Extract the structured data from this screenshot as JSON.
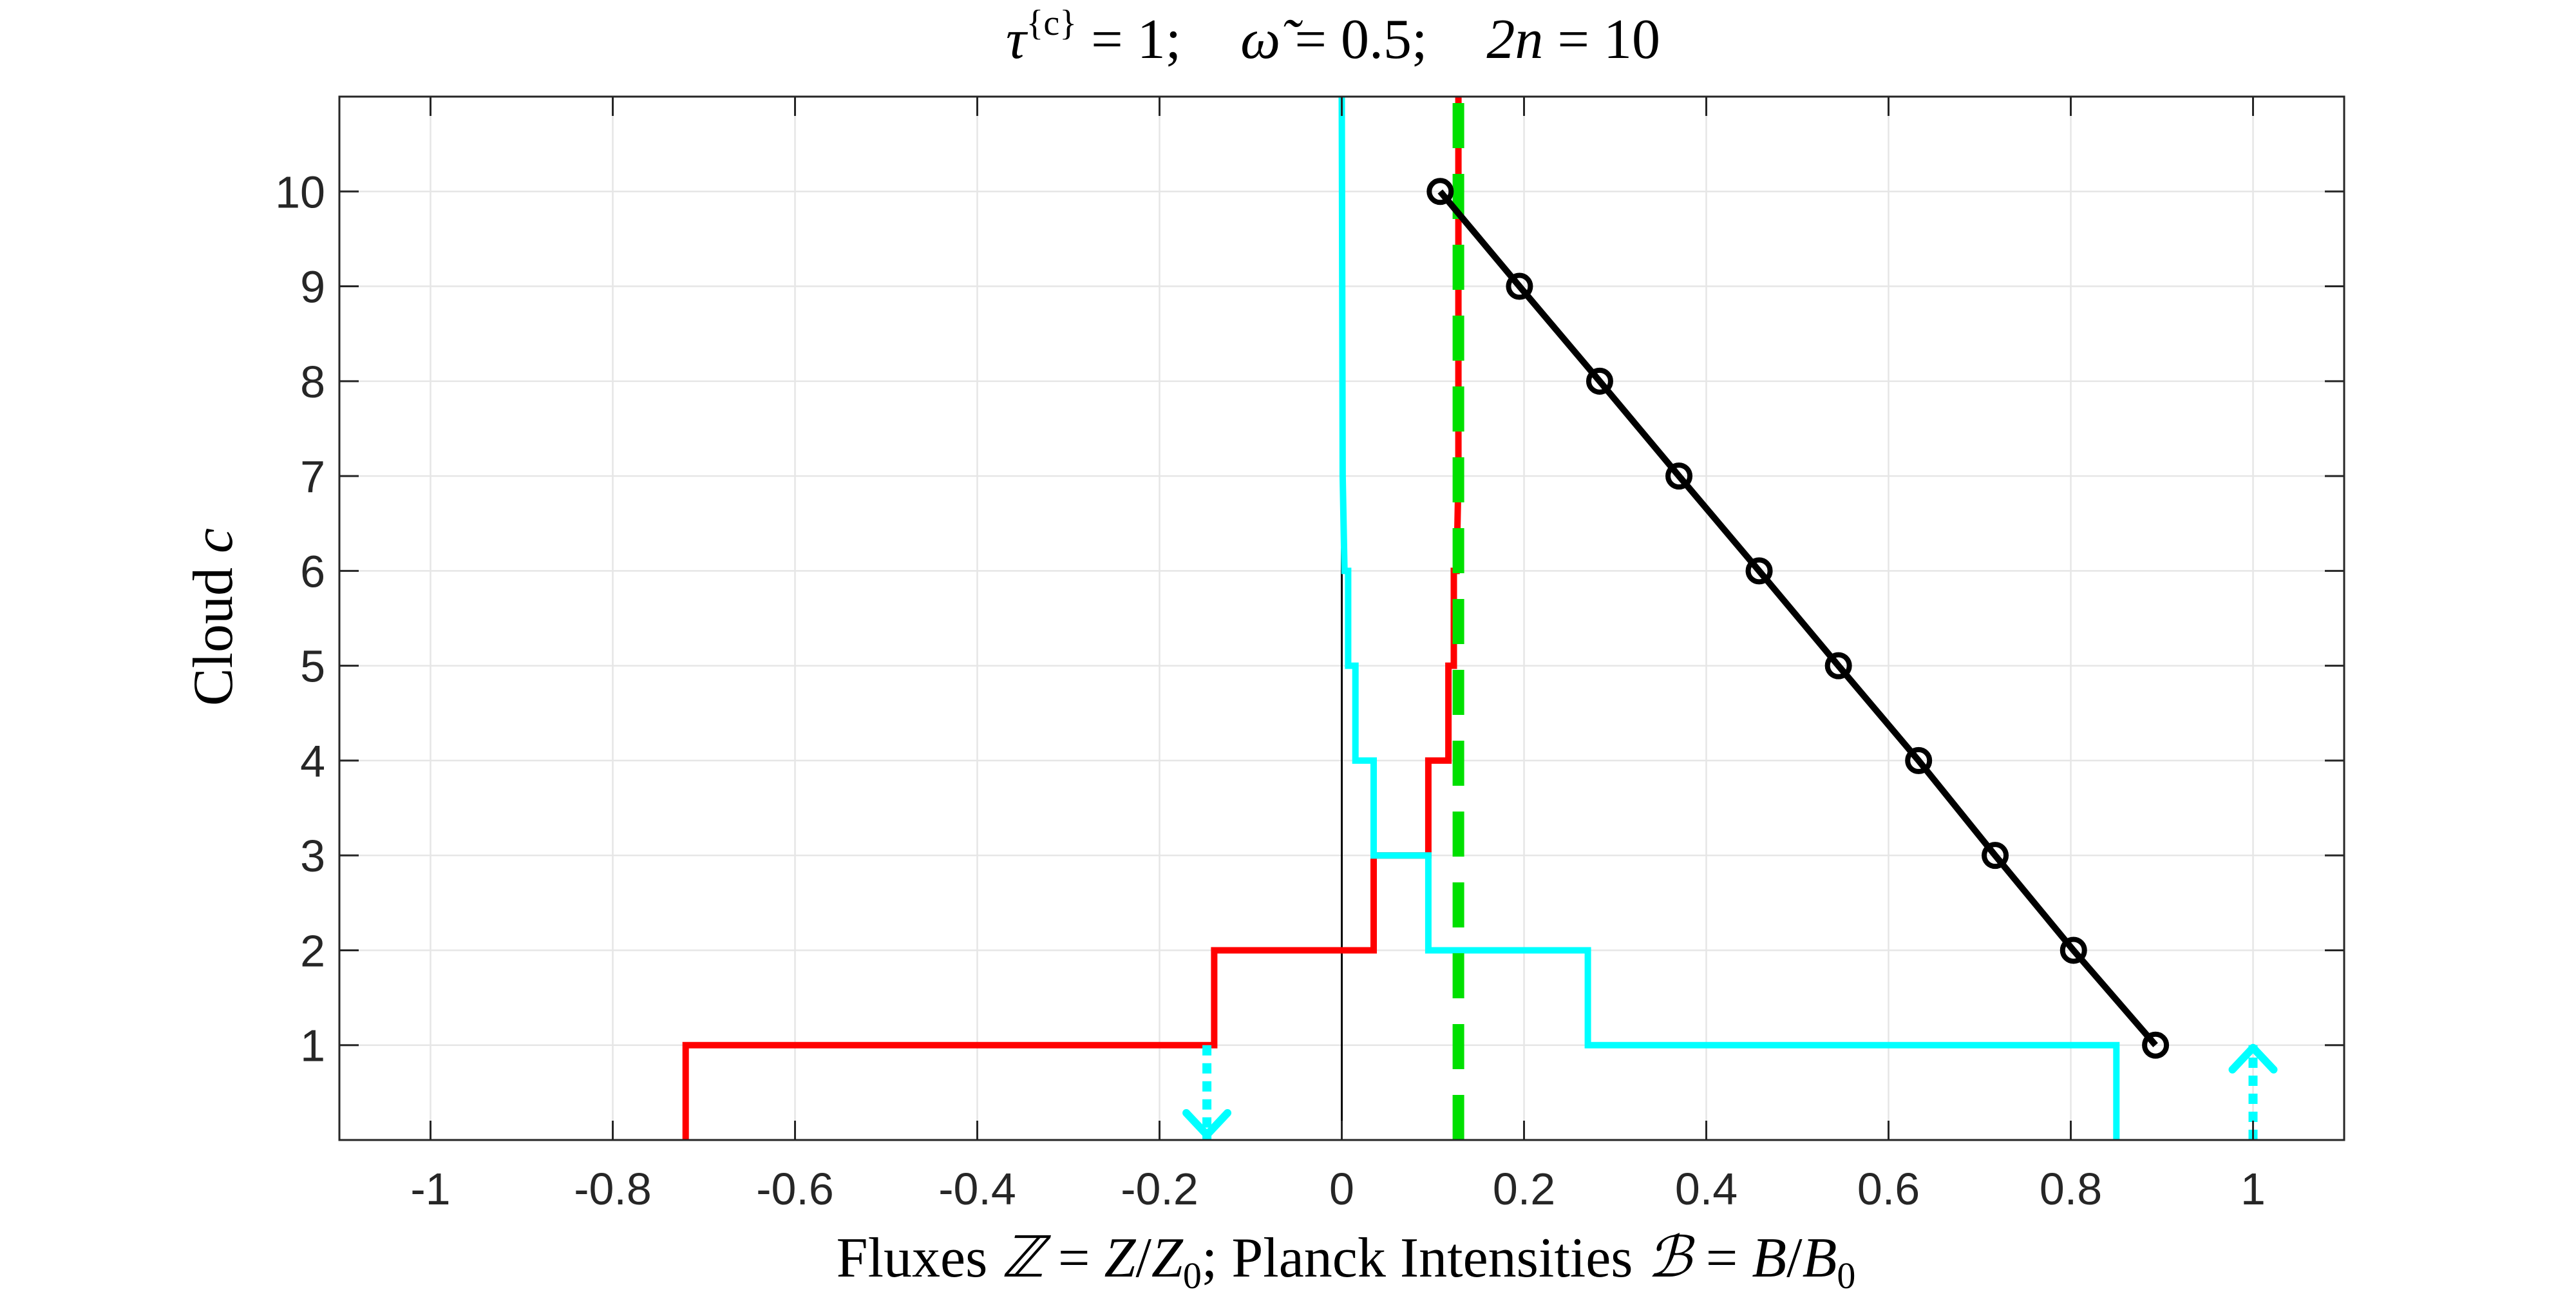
{
  "chart_data": {
    "type": "line",
    "title": "τ{c} = 1;    ω̃ = 0.5;    2n = 10",
    "title_parts": {
      "tau_sym": "τ",
      "tau_sup": "{c}",
      "tau_val": " = 1;",
      "omega_sym": "ω̃",
      "omega_val": " = 0.5;",
      "n_sym": "2n",
      "n_val": " = 10"
    },
    "xlabel": "Fluxes ℤ = Z/Z0;   Planck Intensities ℬ = B/B0",
    "xlabel_parts": {
      "fluxes": "Fluxes ",
      "zcal": "ℤ",
      "zeq": " = ",
      "z": "Z",
      "zslash": "/",
      "z0": "Z",
      "z0sub": "0",
      "semi": ";   Planck Intensities ",
      "bcal": "ℬ",
      "beq": " = ",
      "b": "B",
      "bslash": "/",
      "b0": "B",
      "b0sub": "0"
    },
    "ylabel": "Cloud c",
    "ylabel_parts": {
      "text": "Cloud ",
      "var": "c"
    },
    "xlim": [
      -1.1,
      1.1
    ],
    "ylim": [
      0,
      11
    ],
    "xticks": [
      -1,
      -0.8,
      -0.6,
      -0.4,
      -0.2,
      0,
      0.2,
      0.4,
      0.6,
      0.8,
      1
    ],
    "xtick_labels": [
      "-1",
      "-0.8",
      "-0.6",
      "-0.4",
      "-0.2",
      "0",
      "0.2",
      "0.4",
      "0.6",
      "0.8",
      "1"
    ],
    "yticks": [
      1,
      2,
      3,
      4,
      5,
      6,
      7,
      8,
      9,
      10
    ],
    "ytick_labels": [
      "1",
      "2",
      "3",
      "4",
      "5",
      "6",
      "7",
      "8",
      "9",
      "10"
    ],
    "grid": true,
    "legend": "none",
    "colors": {
      "red": "#ff0000",
      "cyan": "#00ffff",
      "green": "#00e000",
      "black": "#000000",
      "grid": "#e6e6e6",
      "axis": "#262626"
    },
    "series": [
      {
        "style": "staircase",
        "color": "#ff0000",
        "points": [
          [
            -0.72,
            0
          ],
          [
            -0.72,
            1
          ],
          [
            -0.14,
            1
          ],
          [
            -0.14,
            2
          ],
          [
            0.035,
            2
          ],
          [
            0.035,
            3
          ],
          [
            0.095,
            3
          ],
          [
            0.095,
            4
          ],
          [
            0.117,
            4
          ],
          [
            0.117,
            5
          ],
          [
            0.123,
            5
          ],
          [
            0.123,
            6
          ],
          [
            0.126,
            6
          ],
          [
            0.128,
            7
          ],
          [
            0.128,
            11
          ]
        ]
      },
      {
        "style": "staircase",
        "color": "#00ffff",
        "points": [
          [
            0.85,
            0
          ],
          [
            0.85,
            1
          ],
          [
            0.27,
            1
          ],
          [
            0.27,
            2
          ],
          [
            0.095,
            2
          ],
          [
            0.095,
            3
          ],
          [
            0.035,
            3
          ],
          [
            0.035,
            4
          ],
          [
            0.015,
            4
          ],
          [
            0.015,
            5
          ],
          [
            0.007,
            5
          ],
          [
            0.007,
            6
          ],
          [
            0.003,
            6
          ],
          [
            0.001,
            7
          ],
          [
            0,
            11
          ]
        ]
      },
      {
        "style": "dashed",
        "color": "#00e000",
        "points": [
          [
            0.128,
            0
          ],
          [
            0.128,
            11
          ]
        ]
      },
      {
        "style": "line-markers",
        "color": "#000000",
        "points": [
          [
            0.893,
            1
          ],
          [
            0.803,
            2
          ],
          [
            0.717,
            3
          ],
          [
            0.633,
            4
          ],
          [
            0.545,
            5
          ],
          [
            0.458,
            6
          ],
          [
            0.37,
            7
          ],
          [
            0.283,
            8
          ],
          [
            0.195,
            9
          ],
          [
            0.108,
            10
          ]
        ]
      }
    ],
    "annotations": [
      {
        "type": "dotted-arrow-down",
        "color": "#00ffff",
        "x": -0.148,
        "y_from": 1.0,
        "y_to": 0
      },
      {
        "type": "dotted-arrow-up",
        "color": "#00ffff",
        "x": 1.0,
        "y_from": 0,
        "y_to": 1.0
      }
    ]
  }
}
